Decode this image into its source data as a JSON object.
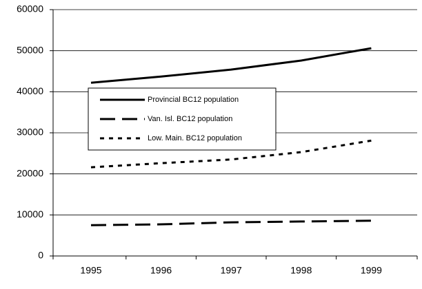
{
  "chart_data": {
    "type": "line",
    "categories": [
      "1995",
      "1996",
      "1997",
      "1998",
      "1999"
    ],
    "series": [
      {
        "name": "Provincial BC12 population",
        "color": "#000000",
        "style": "solid",
        "values": [
          42200,
          43700,
          45400,
          47600,
          50600
        ]
      },
      {
        "name": "Van. Isl. BC12 population",
        "color": "#000000",
        "style": "long-dash",
        "values": [
          7500,
          7700,
          8200,
          8400,
          8600
        ]
      },
      {
        "name": "Low. Main. BC12 population",
        "color": "#000000",
        "style": "short-dash",
        "values": [
          21600,
          22600,
          23500,
          25300,
          28100
        ]
      }
    ],
    "ylim": [
      0,
      60000
    ],
    "yticks": [
      0,
      10000,
      20000,
      30000,
      40000,
      50000,
      60000
    ],
    "grid": true
  }
}
